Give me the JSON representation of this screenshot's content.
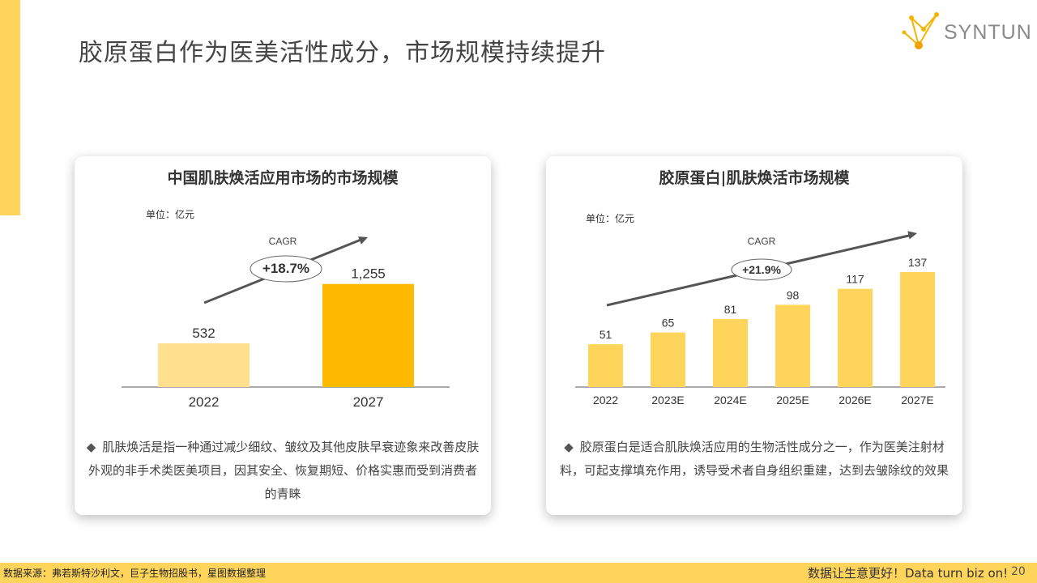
{
  "page": {
    "title": "胶原蛋白作为医美活性成分，市场规模持续提升",
    "logo_text": "SYNTUN",
    "footer_source": "数据来源：弗若斯特沙利文，巨子生物招股书，星图数据整理",
    "footer_slogan": "数据让生意更好！Data turn biz on!",
    "page_number": "20",
    "colors": {
      "accent": "#FFD45A",
      "bar_light": "#FFE08F",
      "bar_dark": "#FFBA00",
      "bar_mid": "#FFD45A"
    }
  },
  "chart_data": [
    {
      "type": "bar",
      "title": "中国肌肤焕活应用市场的市场规模",
      "unit": "单位：亿元",
      "categories": [
        "2022",
        "2027"
      ],
      "values": [
        532,
        1255
      ],
      "value_labels": [
        "532",
        "1,255"
      ],
      "bar_colors": [
        "#FFE08F",
        "#FFBA00"
      ],
      "cagr_label": "CAGR",
      "cagr_value": "+18.7%",
      "ylim": [
        0,
        1400
      ],
      "note": "肌肤焕活是指一种通过减少细纹、皱纹及其他皮肤早衰迹象来改善皮肤外观的非手术类医美项目，因其安全、恢复期短、价格实惠而受到消费者的青睐"
    },
    {
      "type": "bar",
      "title": "胶原蛋白|肌肤焕活市场规模",
      "unit": "单位：亿元",
      "categories": [
        "2022",
        "2023E",
        "2024E",
        "2025E",
        "2026E",
        "2027E"
      ],
      "values": [
        51,
        65,
        81,
        98,
        117,
        137
      ],
      "value_labels": [
        "51",
        "65",
        "81",
        "98",
        "117",
        "137"
      ],
      "bar_colors": [
        "#FFD45A",
        "#FFD45A",
        "#FFD45A",
        "#FFD45A",
        "#FFD45A",
        "#FFD45A"
      ],
      "cagr_label": "CAGR",
      "cagr_value": "+21.9%",
      "ylim": [
        0,
        137
      ],
      "note": "胶原蛋白是适合肌肤焕活应用的生物活性成分之一，作为医美注射材料，可起支撑填充作用，诱导受术者自身组织重建，达到去皱除纹的效果"
    }
  ]
}
